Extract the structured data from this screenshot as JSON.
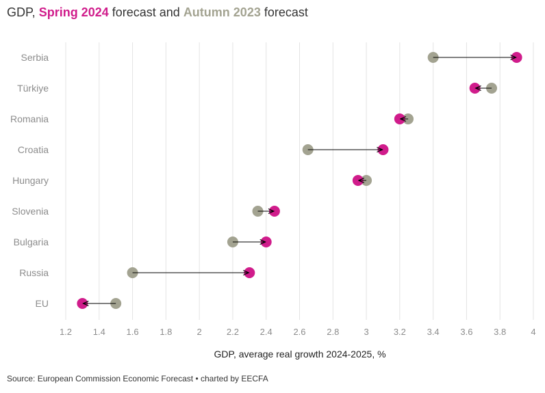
{
  "header": {
    "prefix": "GDP, ",
    "spring_label": "Spring 2024",
    "middle": " forecast and ",
    "autumn_label": "Autumn 2023",
    "suffix": " forecast"
  },
  "colors": {
    "spring": "#d01c8b",
    "autumn": "#a3a391",
    "grid": "#e3e3e3",
    "arrow": "#000000"
  },
  "footer": {
    "source": "Source: European Commission Economic Forecast • charted by EECFA"
  },
  "chart_data": {
    "type": "dumbbell",
    "title": "GDP, Spring 2024 forecast and Autumn 2023 forecast",
    "xlabel": "GDP, average real growth 2024-2025, %",
    "ylabel": "",
    "xlim": [
      1.2,
      4.0
    ],
    "x_ticks": [
      "1.2",
      "1.4",
      "1.6",
      "1.8",
      "2",
      "2.2",
      "2.4",
      "2.6",
      "2.8",
      "3",
      "3.2",
      "3.4",
      "3.6",
      "3.8",
      "4"
    ],
    "grid": true,
    "categories": [
      "Serbia",
      "Türkiye",
      "Romania",
      "Croatia",
      "Hungary",
      "Slovenia",
      "Bulgaria",
      "Russia",
      "EU"
    ],
    "series": [
      {
        "name": "Autumn 2023",
        "values": [
          3.4,
          3.75,
          3.25,
          2.65,
          3.0,
          2.35,
          2.2,
          1.6,
          1.5
        ]
      },
      {
        "name": "Spring 2024",
        "values": [
          3.9,
          3.65,
          3.2,
          3.1,
          2.95,
          2.45,
          2.4,
          2.3,
          1.3
        ]
      }
    ]
  }
}
